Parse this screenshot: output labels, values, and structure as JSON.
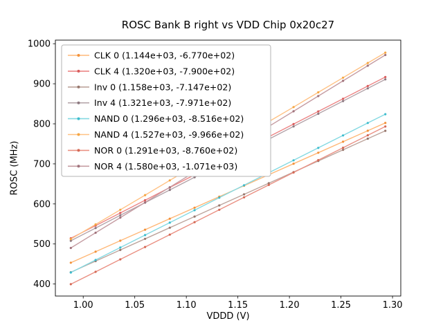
{
  "chart_data": {
    "type": "line",
    "title": "ROSC Bank B right vs VDD Chip 0x20c27",
    "xlabel": "VDDD (V)",
    "ylabel": "ROSC (MHz)",
    "xlim": [
      0.973,
      1.308
    ],
    "ylim": [
      370,
      1009
    ],
    "grid": false,
    "legend_position": "upper left",
    "x_ticks": [
      1.0,
      1.05,
      1.1,
      1.15,
      1.2,
      1.25,
      1.3
    ],
    "x_tick_labels": [
      "1.00",
      "1.05",
      "1.10",
      "1.15",
      "1.20",
      "1.25",
      "1.30"
    ],
    "y_ticks": [
      400,
      500,
      600,
      700,
      800,
      900,
      1000
    ],
    "y_tick_labels": [
      "400",
      "500",
      "600",
      "700",
      "800",
      "900",
      "1000"
    ],
    "x": [
      0.988,
      1.012,
      1.036,
      1.06,
      1.084,
      1.108,
      1.132,
      1.156,
      1.18,
      1.204,
      1.228,
      1.252,
      1.276,
      1.293
    ],
    "series": [
      {
        "name": "CLK 0",
        "legend_label": "CLK 0 (1.144e+03, -6.770e+02)",
        "slope": 1144,
        "intercept": -677.0,
        "line_color": "#ffb878",
        "marker_color": "#f2923a",
        "values": [
          453.3,
          480.7,
          508.2,
          535.6,
          563.1,
          590.6,
          618.0,
          645.5,
          672.9,
          700.4,
          727.8,
          755.3,
          782.7,
          802.2
        ]
      },
      {
        "name": "CLK 4",
        "legend_label": "CLK 4 (1.320e+03, -7.900e+02)",
        "slope": 1320,
        "intercept": -790.0,
        "line_color": "#ec8585",
        "marker_color": "#d85c5c",
        "values": [
          514.2,
          545.8,
          577.5,
          609.2,
          640.9,
          672.6,
          704.2,
          735.9,
          767.6,
          799.3,
          831.0,
          862.6,
          894.3,
          916.8
        ]
      },
      {
        "name": "Inv 0",
        "legend_label": "Inv 0 (1.158e+03, -7.147e+02)",
        "slope": 1158,
        "intercept": -714.7,
        "line_color": "#bda49c",
        "marker_color": "#97776d",
        "values": [
          429.4,
          457.2,
          485.0,
          512.8,
          540.6,
          568.4,
          596.2,
          623.9,
          651.7,
          679.5,
          707.3,
          735.1,
          762.9,
          782.6
        ]
      },
      {
        "name": "Inv 4",
        "legend_label": "Inv 4 (1.321e+03, -7.971e+02)",
        "slope": 1321,
        "intercept": -797.1,
        "line_color": "#b4a4aa",
        "marker_color": "#8c7880",
        "values": [
          508.0,
          539.8,
          571.5,
          603.2,
          634.9,
          666.6,
          698.3,
          730.0,
          761.7,
          793.4,
          825.1,
          856.8,
          888.5,
          911.0
        ]
      },
      {
        "name": "NAND 0",
        "legend_label": "NAND 0 (1.296e+03, -8.516e+02)",
        "slope": 1296,
        "intercept": -851.6,
        "line_color": "#84d9e2",
        "marker_color": "#3dbccd",
        "values": [
          428.8,
          460.0,
          491.1,
          522.2,
          553.3,
          584.4,
          615.5,
          646.6,
          677.7,
          708.8,
          739.9,
          771.0,
          802.1,
          824.1
        ]
      },
      {
        "name": "NAND 4",
        "legend_label": "NAND 4 (1.527e+03, -9.966e+02)",
        "slope": 1527,
        "intercept": -996.6,
        "line_color": "#ffc183",
        "marker_color": "#f5a642",
        "values": [
          512.1,
          548.7,
          585.4,
          622.0,
          658.7,
          695.3,
          732.0,
          768.6,
          805.3,
          841.9,
          878.6,
          915.2,
          951.9,
          977.8
        ]
      },
      {
        "name": "NOR 0",
        "legend_label": "NOR 0 (1.291e+03, -8.760e+02)",
        "slope": 1291,
        "intercept": -876.0,
        "line_color": "#ea9083",
        "marker_color": "#d46955",
        "values": [
          399.5,
          430.5,
          461.5,
          492.5,
          523.4,
          554.4,
          585.4,
          616.4,
          647.4,
          678.4,
          709.3,
          740.3,
          771.3,
          793.3
        ]
      },
      {
        "name": "NOR 4",
        "legend_label": "NOR 4 (1.580e+03, -1.071e+03)",
        "slope": 1580,
        "intercept": -1071.0,
        "line_color": "#c59ca2",
        "marker_color": "#a0737c",
        "values": [
          490.0,
          528.0,
          565.9,
          603.8,
          641.7,
          679.6,
          717.6,
          755.5,
          793.4,
          831.3,
          869.2,
          907.2,
          945.1,
          971.9
        ]
      }
    ]
  }
}
